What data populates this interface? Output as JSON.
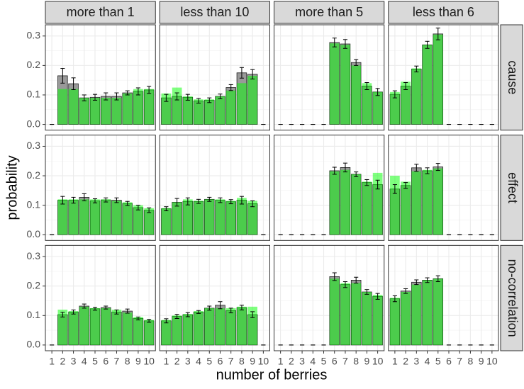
{
  "chart_data": {
    "type": "bar",
    "xlabel": "number of berries",
    "ylabel": "probability",
    "columns": [
      "more than 1",
      "less than 10",
      "more than 5",
      "less than 6"
    ],
    "rows": [
      "cause",
      "effect",
      "no-correlation"
    ],
    "categories": [
      "1",
      "2",
      "3",
      "4",
      "5",
      "6",
      "7",
      "8",
      "9",
      "10"
    ],
    "ylim": [
      -0.0195,
      0.338
    ],
    "yticks": [
      {
        "value": 0,
        "label": "0.0"
      },
      0.1,
      0.2,
      0.3
    ],
    "grid": true,
    "bar_color": "#999999",
    "model_color": "#00ff00",
    "model_opacity": 0.5,
    "panels": [
      [
        {
          "values": [
            0,
            0.165,
            0.138,
            0.09,
            0.092,
            0.095,
            0.095,
            0.107,
            0.112,
            0.117
          ],
          "errors": [
            0,
            0.025,
            0.02,
            0.01,
            0.01,
            0.012,
            0.012,
            0.007,
            0.012,
            0.012
          ],
          "model": [
            0,
            0.12,
            0.12,
            0.09,
            0.09,
            0.09,
            0.09,
            0.105,
            0.12,
            0.12
          ]
        },
        {
          "values": [
            0.09,
            0.095,
            0.092,
            0.08,
            0.082,
            0.095,
            0.125,
            0.175,
            0.17,
            0
          ],
          "errors": [
            0.012,
            0.012,
            0.01,
            0.008,
            0.008,
            0.008,
            0.01,
            0.018,
            0.016,
            0
          ],
          "model": [
            0.105,
            0.125,
            0.095,
            0.085,
            0.085,
            0.095,
            0.115,
            0.14,
            0.165,
            0
          ]
        },
        {
          "values": [
            0,
            0,
            0,
            0,
            0,
            0.278,
            0.273,
            0.21,
            0.13,
            0.11
          ],
          "errors": [
            0,
            0,
            0,
            0,
            0,
            0.015,
            0.015,
            0.01,
            0.012,
            0.012
          ],
          "model": [
            0,
            0,
            0,
            0,
            0,
            0.275,
            0.27,
            0.2,
            0.14,
            0.11
          ]
        },
        {
          "values": [
            0.102,
            0.13,
            0.188,
            0.27,
            0.307,
            0,
            0,
            0,
            0,
            0
          ],
          "errors": [
            0.012,
            0.012,
            0.01,
            0.012,
            0.02,
            0,
            0,
            0,
            0,
            0
          ],
          "model": [
            0.11,
            0.145,
            0.19,
            0.27,
            0.305,
            0,
            0,
            0,
            0,
            0
          ]
        }
      ],
      [
        {
          "values": [
            0,
            0.117,
            0.117,
            0.127,
            0.115,
            0.118,
            0.117,
            0.106,
            0.092,
            0.083
          ],
          "errors": [
            0,
            0.013,
            0.01,
            0.012,
            0.007,
            0.007,
            0.008,
            0.007,
            0.008,
            0.008
          ],
          "model": [
            0,
            0.12,
            0.12,
            0.12,
            0.12,
            0.12,
            0.115,
            0.11,
            0.1,
            0.09
          ]
        },
        {
          "values": [
            0.088,
            0.11,
            0.113,
            0.113,
            0.12,
            0.117,
            0.112,
            0.117,
            0.105,
            0
          ],
          "errors": [
            0.007,
            0.013,
            0.012,
            0.007,
            0.007,
            0.008,
            0.007,
            0.013,
            0.01,
            0
          ],
          "model": [
            0.09,
            0.11,
            0.12,
            0.115,
            0.12,
            0.12,
            0.115,
            0.125,
            0.115,
            0
          ]
        },
        {
          "values": [
            0,
            0,
            0,
            0,
            0,
            0.217,
            0.228,
            0.205,
            0.177,
            0.17
          ],
          "errors": [
            0,
            0,
            0,
            0,
            0,
            0.012,
            0.015,
            0.008,
            0.01,
            0.015
          ],
          "model": [
            0,
            0,
            0,
            0,
            0,
            0.215,
            0.22,
            0.205,
            0.18,
            0.21
          ]
        },
        {
          "values": [
            0.155,
            0.167,
            0.227,
            0.217,
            0.23,
            0,
            0,
            0,
            0,
            0
          ],
          "errors": [
            0.015,
            0.01,
            0.012,
            0.01,
            0.012,
            0,
            0,
            0,
            0,
            0
          ],
          "model": [
            0.2,
            0.18,
            0.215,
            0.22,
            0.225,
            0,
            0,
            0,
            0,
            0
          ]
        }
      ],
      [
        {
          "values": [
            0,
            0.103,
            0.112,
            0.132,
            0.123,
            0.127,
            0.112,
            0.115,
            0.09,
            0.082
          ],
          "errors": [
            0,
            0.008,
            0.007,
            0.007,
            0.005,
            0.005,
            0.007,
            0.007,
            0.005,
            0.005
          ],
          "model": [
            0,
            0.12,
            0.115,
            0.13,
            0.125,
            0.125,
            0.12,
            0.11,
            0.095,
            0.085
          ]
        },
        {
          "values": [
            0.082,
            0.097,
            0.103,
            0.112,
            0.125,
            0.135,
            0.117,
            0.127,
            0.103,
            0
          ],
          "errors": [
            0.007,
            0.007,
            0.007,
            0.005,
            0.007,
            0.012,
            0.008,
            0.008,
            0.01,
            0
          ],
          "model": [
            0.085,
            0.1,
            0.105,
            0.115,
            0.125,
            0.125,
            0.125,
            0.13,
            0.13,
            0
          ]
        },
        {
          "values": [
            0,
            0,
            0,
            0,
            0,
            0.232,
            0.205,
            0.22,
            0.18,
            0.165
          ],
          "errors": [
            0,
            0,
            0,
            0,
            0,
            0.013,
            0.01,
            0.01,
            0.008,
            0.01
          ],
          "model": [
            0,
            0,
            0,
            0,
            0,
            0.225,
            0.21,
            0.21,
            0.18,
            0.17
          ]
        },
        {
          "values": [
            0.157,
            0.183,
            0.213,
            0.22,
            0.225,
            0,
            0,
            0,
            0,
            0
          ],
          "errors": [
            0.01,
            0.008,
            0.008,
            0.008,
            0.01,
            0,
            0,
            0,
            0,
            0
          ],
          "model": [
            0.16,
            0.18,
            0.205,
            0.22,
            0.225,
            0,
            0,
            0,
            0,
            0
          ]
        }
      ]
    ]
  }
}
